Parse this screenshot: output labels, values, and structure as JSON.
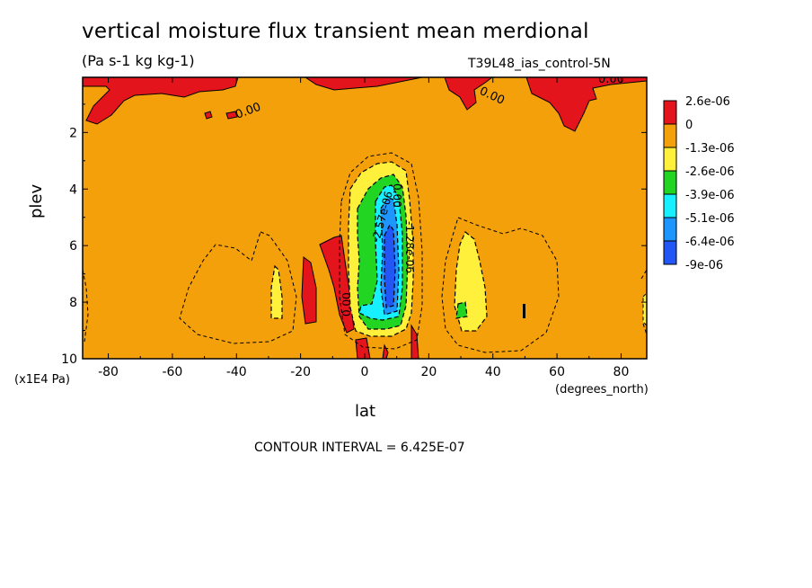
{
  "chart_data": {
    "type": "heatmap",
    "title": "vertical moisture flux transient mean merdional",
    "subtitle": "(Pa s-1 kg kg-1)",
    "run_label": "T39L48_ias_control-5N",
    "xlabel": "lat",
    "x_unit": "(degrees_north)",
    "ylabel": "plev",
    "y_unit": "(x1E4 Pa)",
    "footer": "CONTOUR INTERVAL = 6.425E-07",
    "xlim": [
      -88,
      88
    ],
    "ylim": [
      0.05,
      10
    ],
    "y_reversed": true,
    "x_ticks": [
      "-80",
      "-60",
      "-40",
      "-20",
      "0",
      "20",
      "40",
      "60",
      "80"
    ],
    "y_ticks": [
      "2",
      "4",
      "6",
      "8",
      "10"
    ],
    "contour_labels": [
      "0.00",
      "0.00",
      "0.00",
      "0.00",
      "0.00",
      "-2.57e-06",
      "-1.28e-06"
    ],
    "legend": {
      "labels": [
        "2.6e-06",
        "0",
        "-1.3e-06",
        "-2.6e-06",
        "-3.9e-06",
        "-5.1e-06",
        "-6.4e-06",
        "-9e-06"
      ],
      "colors": [
        "#e3141b",
        "#f4a00b",
        "#fff03c",
        "#22d522",
        "#17f0ff",
        "#1e96ff",
        "#2257f5"
      ]
    }
  }
}
